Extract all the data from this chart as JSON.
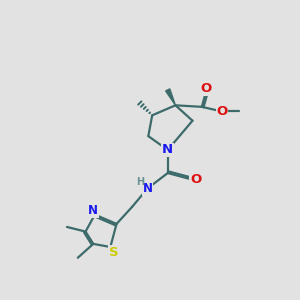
{
  "bg_color": "#e2e2e2",
  "bond_color": "#3d6b6b",
  "bond_lw": 1.6,
  "atom_colors": {
    "N": "#1a1aee",
    "O": "#dd1111",
    "S": "#cccc00",
    "H": "#6a9090"
  },
  "fs": 8.5
}
